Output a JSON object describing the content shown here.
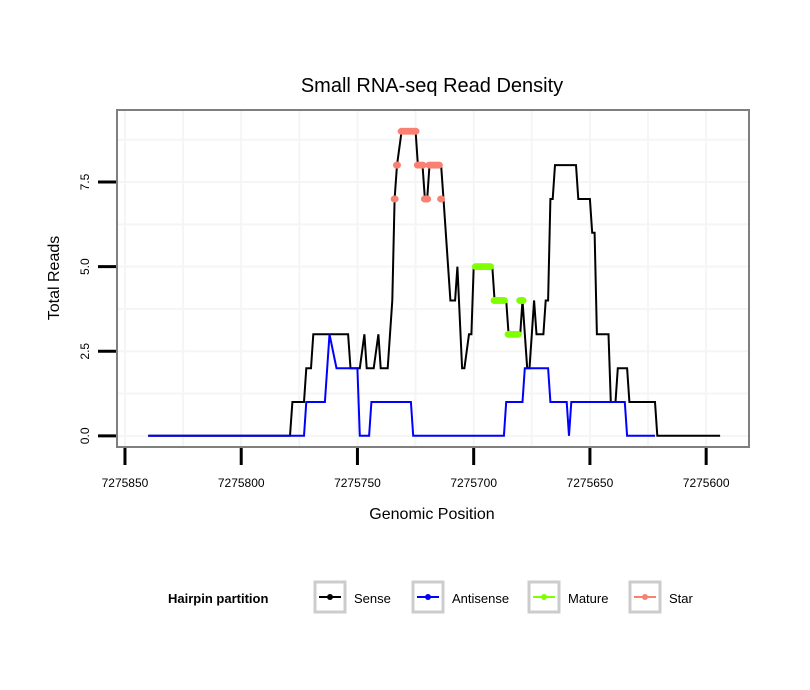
{
  "chart_data": {
    "type": "line",
    "title": "Small RNA-seq Read Density",
    "xlabel": "Genomic Position",
    "ylabel": "Total Reads",
    "x_reversed": true,
    "xlim": [
      7275853,
      7275582
    ],
    "ylim": [
      -0.3,
      9.6
    ],
    "x_ticks": [
      7275850,
      7275800,
      7275750,
      7275700,
      7275650,
      7275600
    ],
    "x_tick_labels": [
      "7275850",
      "7275800",
      "7275750",
      "7275700",
      "7275650",
      "7275600"
    ],
    "y_ticks": [
      0.0,
      2.5,
      5.0,
      7.5
    ],
    "y_tick_labels": [
      "0.0",
      "2.5",
      "5.0",
      "7.5"
    ],
    "grid": true,
    "legend": {
      "title": "Hairpin partition",
      "position": "bottom",
      "entries": [
        {
          "label": "Sense",
          "color": "#000000"
        },
        {
          "label": "Antisense",
          "color": "#0000ff"
        },
        {
          "label": "Mature",
          "color": "#7fff00"
        },
        {
          "label": "Star",
          "color": "#fa8072"
        }
      ]
    },
    "series": [
      {
        "name": "Sense",
        "color": "#000000",
        "marker": false,
        "points": [
          [
            7275840,
            0
          ],
          [
            7275779,
            0
          ],
          [
            7275778,
            1
          ],
          [
            7275773,
            1
          ],
          [
            7275772,
            2
          ],
          [
            7275770,
            2
          ],
          [
            7275769,
            3
          ],
          [
            7275754,
            3
          ],
          [
            7275753,
            2
          ],
          [
            7275749,
            2
          ],
          [
            7275747,
            3
          ],
          [
            7275746,
            2
          ],
          [
            7275743,
            2
          ],
          [
            7275741,
            3
          ],
          [
            7275740,
            2
          ],
          [
            7275737,
            2
          ],
          [
            7275735,
            4
          ],
          [
            7275734,
            7
          ],
          [
            7275733,
            8
          ],
          [
            7275731,
            9
          ],
          [
            7275725,
            9
          ],
          [
            7275724,
            8
          ],
          [
            7275722,
            8
          ],
          [
            7275721,
            7
          ],
          [
            7275720,
            7
          ],
          [
            7275719,
            8
          ],
          [
            7275714,
            8
          ],
          [
            7275713,
            7
          ],
          [
            7275710,
            4
          ],
          [
            7275708,
            4
          ],
          [
            7275707,
            5
          ],
          [
            7275705,
            2
          ],
          [
            7275704,
            2
          ],
          [
            7275702,
            3
          ],
          [
            7275701,
            3
          ],
          [
            7275700,
            5
          ],
          [
            7275692,
            5
          ],
          [
            7275691,
            4
          ],
          [
            7275686,
            4
          ],
          [
            7275685,
            3
          ],
          [
            7275680,
            3
          ],
          [
            7275679,
            4
          ],
          [
            7275677,
            2
          ],
          [
            7275676,
            2
          ],
          [
            7275675,
            3
          ],
          [
            7275674,
            4
          ],
          [
            7275673,
            3
          ],
          [
            7275670,
            3
          ],
          [
            7275669,
            4
          ],
          [
            7275668,
            4
          ],
          [
            7275667,
            7
          ],
          [
            7275666,
            7
          ],
          [
            7275665,
            8
          ],
          [
            7275656,
            8
          ],
          [
            7275655,
            7
          ],
          [
            7275650,
            7
          ],
          [
            7275649,
            6
          ],
          [
            7275648,
            6
          ],
          [
            7275647,
            3
          ],
          [
            7275642,
            3
          ],
          [
            7275641,
            1
          ],
          [
            7275639,
            1
          ],
          [
            7275638,
            2
          ],
          [
            7275634,
            2
          ],
          [
            7275633,
            1
          ],
          [
            7275622,
            1
          ],
          [
            7275621,
            0
          ],
          [
            7275594,
            0
          ]
        ]
      },
      {
        "name": "Antisense",
        "color": "#0000ff",
        "marker": false,
        "points": [
          [
            7275840,
            0
          ],
          [
            7275773,
            0
          ],
          [
            7275772,
            1
          ],
          [
            7275764,
            1
          ],
          [
            7275762,
            3
          ],
          [
            7275759,
            2
          ],
          [
            7275750,
            2
          ],
          [
            7275749,
            0
          ],
          [
            7275745,
            0
          ],
          [
            7275744,
            1
          ],
          [
            7275727,
            1
          ],
          [
            7275726,
            0
          ],
          [
            7275704,
            0
          ],
          [
            7275703,
            0
          ],
          [
            7275687,
            0
          ],
          [
            7275686,
            1
          ],
          [
            7275679,
            1
          ],
          [
            7275678,
            2
          ],
          [
            7275668,
            2
          ],
          [
            7275667,
            1
          ],
          [
            7275660,
            1
          ],
          [
            7275659,
            0
          ],
          [
            7275658,
            1
          ],
          [
            7275635,
            1
          ],
          [
            7275634,
            0
          ],
          [
            7275622,
            0
          ]
        ]
      },
      {
        "name": "Mature",
        "color": "#7fff00",
        "marker": true,
        "points": [
          [
            7275699,
            5
          ],
          [
            7275698,
            5
          ],
          [
            7275697,
            5
          ],
          [
            7275696,
            5
          ],
          [
            7275695,
            5
          ],
          [
            7275694,
            5
          ],
          [
            7275693,
            5
          ],
          [
            7275691,
            4
          ],
          [
            7275690,
            4
          ],
          [
            7275689,
            4
          ],
          [
            7275688,
            4
          ],
          [
            7275687,
            4
          ],
          [
            7275685,
            3
          ],
          [
            7275684,
            3
          ],
          [
            7275683,
            3
          ],
          [
            7275682,
            3
          ],
          [
            7275681,
            3
          ],
          [
            7275680,
            4
          ],
          [
            7275679,
            4
          ]
        ]
      },
      {
        "name": "Star",
        "color": "#fa8072",
        "marker": true,
        "points": [
          [
            7275734,
            7
          ],
          [
            7275733,
            8
          ],
          [
            7275731,
            9
          ],
          [
            7275730,
            9
          ],
          [
            7275729,
            9
          ],
          [
            7275728,
            9
          ],
          [
            7275727,
            9
          ],
          [
            7275726,
            9
          ],
          [
            7275725,
            9
          ],
          [
            7275724,
            8
          ],
          [
            7275723,
            8
          ],
          [
            7275722,
            8
          ],
          [
            7275721,
            7
          ],
          [
            7275720,
            7
          ],
          [
            7275719,
            8
          ],
          [
            7275718,
            8
          ],
          [
            7275717,
            8
          ],
          [
            7275716,
            8
          ],
          [
            7275715,
            8
          ],
          [
            7275714,
            7
          ]
        ]
      }
    ]
  }
}
